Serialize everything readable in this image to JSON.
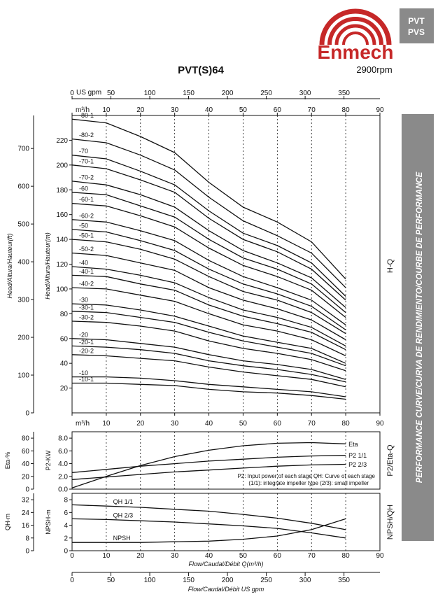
{
  "header": {
    "brand": "Enmech",
    "badge_line1": "PVT",
    "badge_line2": "PVS",
    "title": "PVT(S)64",
    "speed": "2900rpm",
    "side_banner": "PERFORMANCE CURVE/CURVA DE RENDIMIENTO/COURBE DE PERFORMANCE",
    "colors": {
      "brand_red": "#c62828",
      "badge_gray": "#8a8a8a"
    }
  },
  "chart_data": {
    "type": "line",
    "title": "PVT(S)64",
    "x_axis": {
      "label": "Flow/Caudal/Débit Q(m³/h)",
      "unit_label": "m³/h",
      "range": [
        0,
        90
      ],
      "ticks": [
        0,
        10,
        20,
        30,
        40,
        50,
        60,
        70,
        80,
        90
      ]
    },
    "us_gpm_axis": {
      "label_top": "US gpm",
      "label_bottom": "Flow/Caudal/Débit US gpm",
      "ticks": [
        0,
        50,
        100,
        150,
        200,
        250,
        300,
        350
      ]
    },
    "head_panel": {
      "ylabel_m": "Head/Altura/Hauteur(m)",
      "ylabel_ft": "Head/Altura/Hauteur(ft)",
      "ylim_m": [
        0,
        240
      ],
      "ticks_m": [
        20,
        40,
        60,
        80,
        100,
        120,
        140,
        160,
        180,
        200,
        220
      ],
      "ticks_ft": [
        0,
        100,
        200,
        300,
        400,
        500,
        600,
        700
      ],
      "side_label": "H-Q",
      "x": [
        0,
        10,
        20,
        30,
        40,
        50,
        60,
        70,
        80
      ],
      "series": [
        {
          "name": "-80-1",
          "values": [
            237,
            234,
            223,
            210,
            186,
            166,
            154,
            138,
            108
          ]
        },
        {
          "name": "-80-2",
          "values": [
            221,
            218,
            208,
            196,
            174,
            155,
            143,
            129,
            101
          ]
        },
        {
          "name": "-70",
          "values": [
            208,
            205,
            195,
            184,
            163,
            145,
            135,
            121,
            94
          ]
        },
        {
          "name": "-70-1",
          "values": [
            200,
            197,
            188,
            178,
            157,
            140,
            130,
            116,
            91
          ]
        },
        {
          "name": "-70-2",
          "values": [
            187,
            184,
            176,
            166,
            147,
            131,
            121,
            109,
            85
          ]
        },
        {
          "name": "-60",
          "values": [
            178,
            176,
            167,
            158,
            140,
            125,
            116,
            104,
            81
          ]
        },
        {
          "name": "-60-1",
          "values": [
            169,
            167,
            159,
            150,
            133,
            119,
            110,
            99,
            77
          ]
        },
        {
          "name": "-60-2",
          "values": [
            156,
            154,
            147,
            139,
            123,
            110,
            101,
            91,
            71
          ]
        },
        {
          "name": "-50",
          "values": [
            148,
            146,
            139,
            131,
            116,
            104,
            96,
            86,
            67
          ]
        },
        {
          "name": "-50-1",
          "values": [
            140,
            138,
            132,
            124,
            110,
            98,
            91,
            81,
            64
          ]
        },
        {
          "name": "-50-2",
          "values": [
            129,
            127,
            121,
            115,
            101,
            91,
            84,
            75,
            59
          ]
        },
        {
          "name": "-40",
          "values": [
            118,
            116,
            111,
            105,
            93,
            83,
            77,
            69,
            54
          ]
        },
        {
          "name": "-40-1",
          "values": [
            111,
            110,
            104,
            99,
            87,
            78,
            72,
            65,
            51
          ]
        },
        {
          "name": "-40-2",
          "values": [
            101,
            100,
            95,
            90,
            80,
            71,
            66,
            59,
            46
          ]
        },
        {
          "name": "-30",
          "values": [
            88,
            87,
            83,
            78,
            70,
            62,
            57,
            52,
            40
          ]
        },
        {
          "name": "-30-1",
          "values": [
            82,
            81,
            77,
            73,
            65,
            58,
            53,
            48,
            38
          ]
        },
        {
          "name": "-30-2",
          "values": [
            74,
            73,
            70,
            66,
            58,
            52,
            48,
            43,
            34
          ]
        },
        {
          "name": "-20",
          "values": [
            60,
            59,
            56,
            53,
            47,
            42,
            39,
            35,
            27
          ]
        },
        {
          "name": "-20-1",
          "values": [
            54,
            53,
            51,
            48,
            42,
            38,
            35,
            31,
            25
          ]
        },
        {
          "name": "-20-2",
          "values": [
            47,
            46,
            44,
            42,
            37,
            33,
            30,
            27,
            21
          ]
        },
        {
          "name": "-10",
          "values": [
            29,
            29,
            28,
            26,
            23,
            21,
            19,
            17,
            13
          ]
        },
        {
          "name": "-10-1",
          "values": [
            24,
            24,
            23,
            22,
            19,
            17,
            16,
            14,
            11
          ]
        }
      ]
    },
    "efficiency_panel": {
      "eta_label": "Eta-%",
      "p2_label": "P2-KW",
      "eta_ticks": [
        0,
        20,
        40,
        60,
        80
      ],
      "p2_ticks": [
        0.0,
        2.0,
        4.0,
        6.0,
        8.0
      ],
      "ylim_kw": [
        0,
        9
      ],
      "side_label": "P2/Eta-Q",
      "x": [
        0,
        10,
        20,
        30,
        40,
        50,
        60,
        70,
        80
      ],
      "series": [
        {
          "name": "Eta",
          "values": [
            0.2,
            2.0,
            3.7,
            5.1,
            6.1,
            6.8,
            7.2,
            7.3,
            7.1
          ]
        },
        {
          "name": "P2 1/1",
          "values": [
            2.6,
            3.1,
            3.6,
            4.0,
            4.4,
            4.7,
            5.0,
            5.2,
            5.3
          ]
        },
        {
          "name": "P2 2/3",
          "values": [
            1.5,
            1.9,
            2.3,
            2.7,
            3.0,
            3.3,
            3.6,
            3.8,
            3.9
          ]
        }
      ],
      "note_line1": "P2: Input power of each stage QH: Curve of each stage",
      "note_line2": "(1/1): integrate impeller type (2/3): small impeller"
    },
    "npsh_panel": {
      "qh_label": "QH-m",
      "npsh_label": "NPSH-m",
      "qh_ticks": [
        0,
        8,
        16,
        24,
        32
      ],
      "npsh_ticks": [
        0,
        2,
        4,
        6,
        8
      ],
      "ylim_npsh": [
        0,
        9
      ],
      "side_label": "NPSH/QH",
      "x": [
        0,
        10,
        20,
        30,
        40,
        50,
        60,
        70,
        80
      ],
      "series": [
        {
          "name": "QH 1/1",
          "values": [
            7.2,
            7.0,
            6.8,
            6.5,
            6.2,
            5.7,
            5.1,
            4.3,
            3.3
          ]
        },
        {
          "name": "QH 2/3",
          "values": [
            5.0,
            4.9,
            4.7,
            4.5,
            4.2,
            3.9,
            3.5,
            2.8,
            2.0
          ]
        },
        {
          "name": "NPSH",
          "values": [
            1.3,
            1.3,
            1.3,
            1.4,
            1.5,
            1.8,
            2.3,
            3.3,
            5.0
          ]
        }
      ]
    }
  }
}
